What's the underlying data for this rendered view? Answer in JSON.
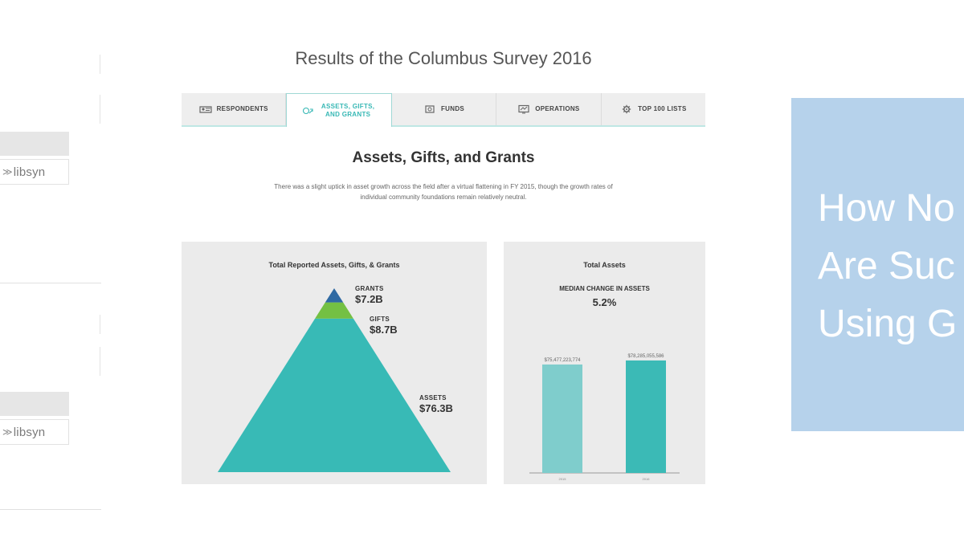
{
  "left_strip": {
    "libsyn_1": "libsyn",
    "libsyn_2": "libsyn",
    "icon": "libsyn-logo-icon"
  },
  "main": {
    "title": "Results of the Columbus Survey 2016",
    "tabs": [
      {
        "label": "RESPONDENTS",
        "icon": "respondents-icon"
      },
      {
        "label": "ASSETS, GIFTS, AND GRANTS",
        "icon": "assets-icon",
        "active": true
      },
      {
        "label": "FUNDS",
        "icon": "funds-icon"
      },
      {
        "label": "OPERATIONS",
        "icon": "operations-icon"
      },
      {
        "label": "TOP 100 LISTS",
        "icon": "gear-icon"
      }
    ],
    "section_title": "Assets, Gifts, and Grants",
    "section_desc": "There was a slight uptick in asset growth across the field after a virtual flattening in FY 2015, though the growth rates of individual community foundations remain relatively neutral."
  },
  "chart_data": [
    {
      "type": "pyramid",
      "title": "Total Reported Assets, Gifts, & Grants",
      "segments": [
        {
          "label": "GRANTS",
          "value": 7.2,
          "display": "$7.2B",
          "color": "#2f6aa3"
        },
        {
          "label": "GIFTS",
          "value": 8.7,
          "display": "$8.7B",
          "color": "#74c043"
        },
        {
          "label": "ASSETS",
          "value": 76.3,
          "display": "$76.3B",
          "color": "#38bab6"
        }
      ]
    },
    {
      "type": "bar",
      "title": "Total Assets",
      "subtitle_label": "MEDIAN CHANGE IN ASSETS",
      "subtitle_value": "5.2%",
      "categories": [
        "2015",
        "2016"
      ],
      "values": [
        75477223774,
        78285055586
      ],
      "value_labels": [
        "$75,477,223,774",
        "$78,285,055,586"
      ],
      "colors": [
        "#7fcdcc",
        "#3bbab6"
      ],
      "ylim": [
        0,
        95000000000
      ]
    }
  ],
  "banner": {
    "lines": [
      "How No",
      "Are Suc",
      "Using G"
    ],
    "color": "#b6d2eb"
  }
}
